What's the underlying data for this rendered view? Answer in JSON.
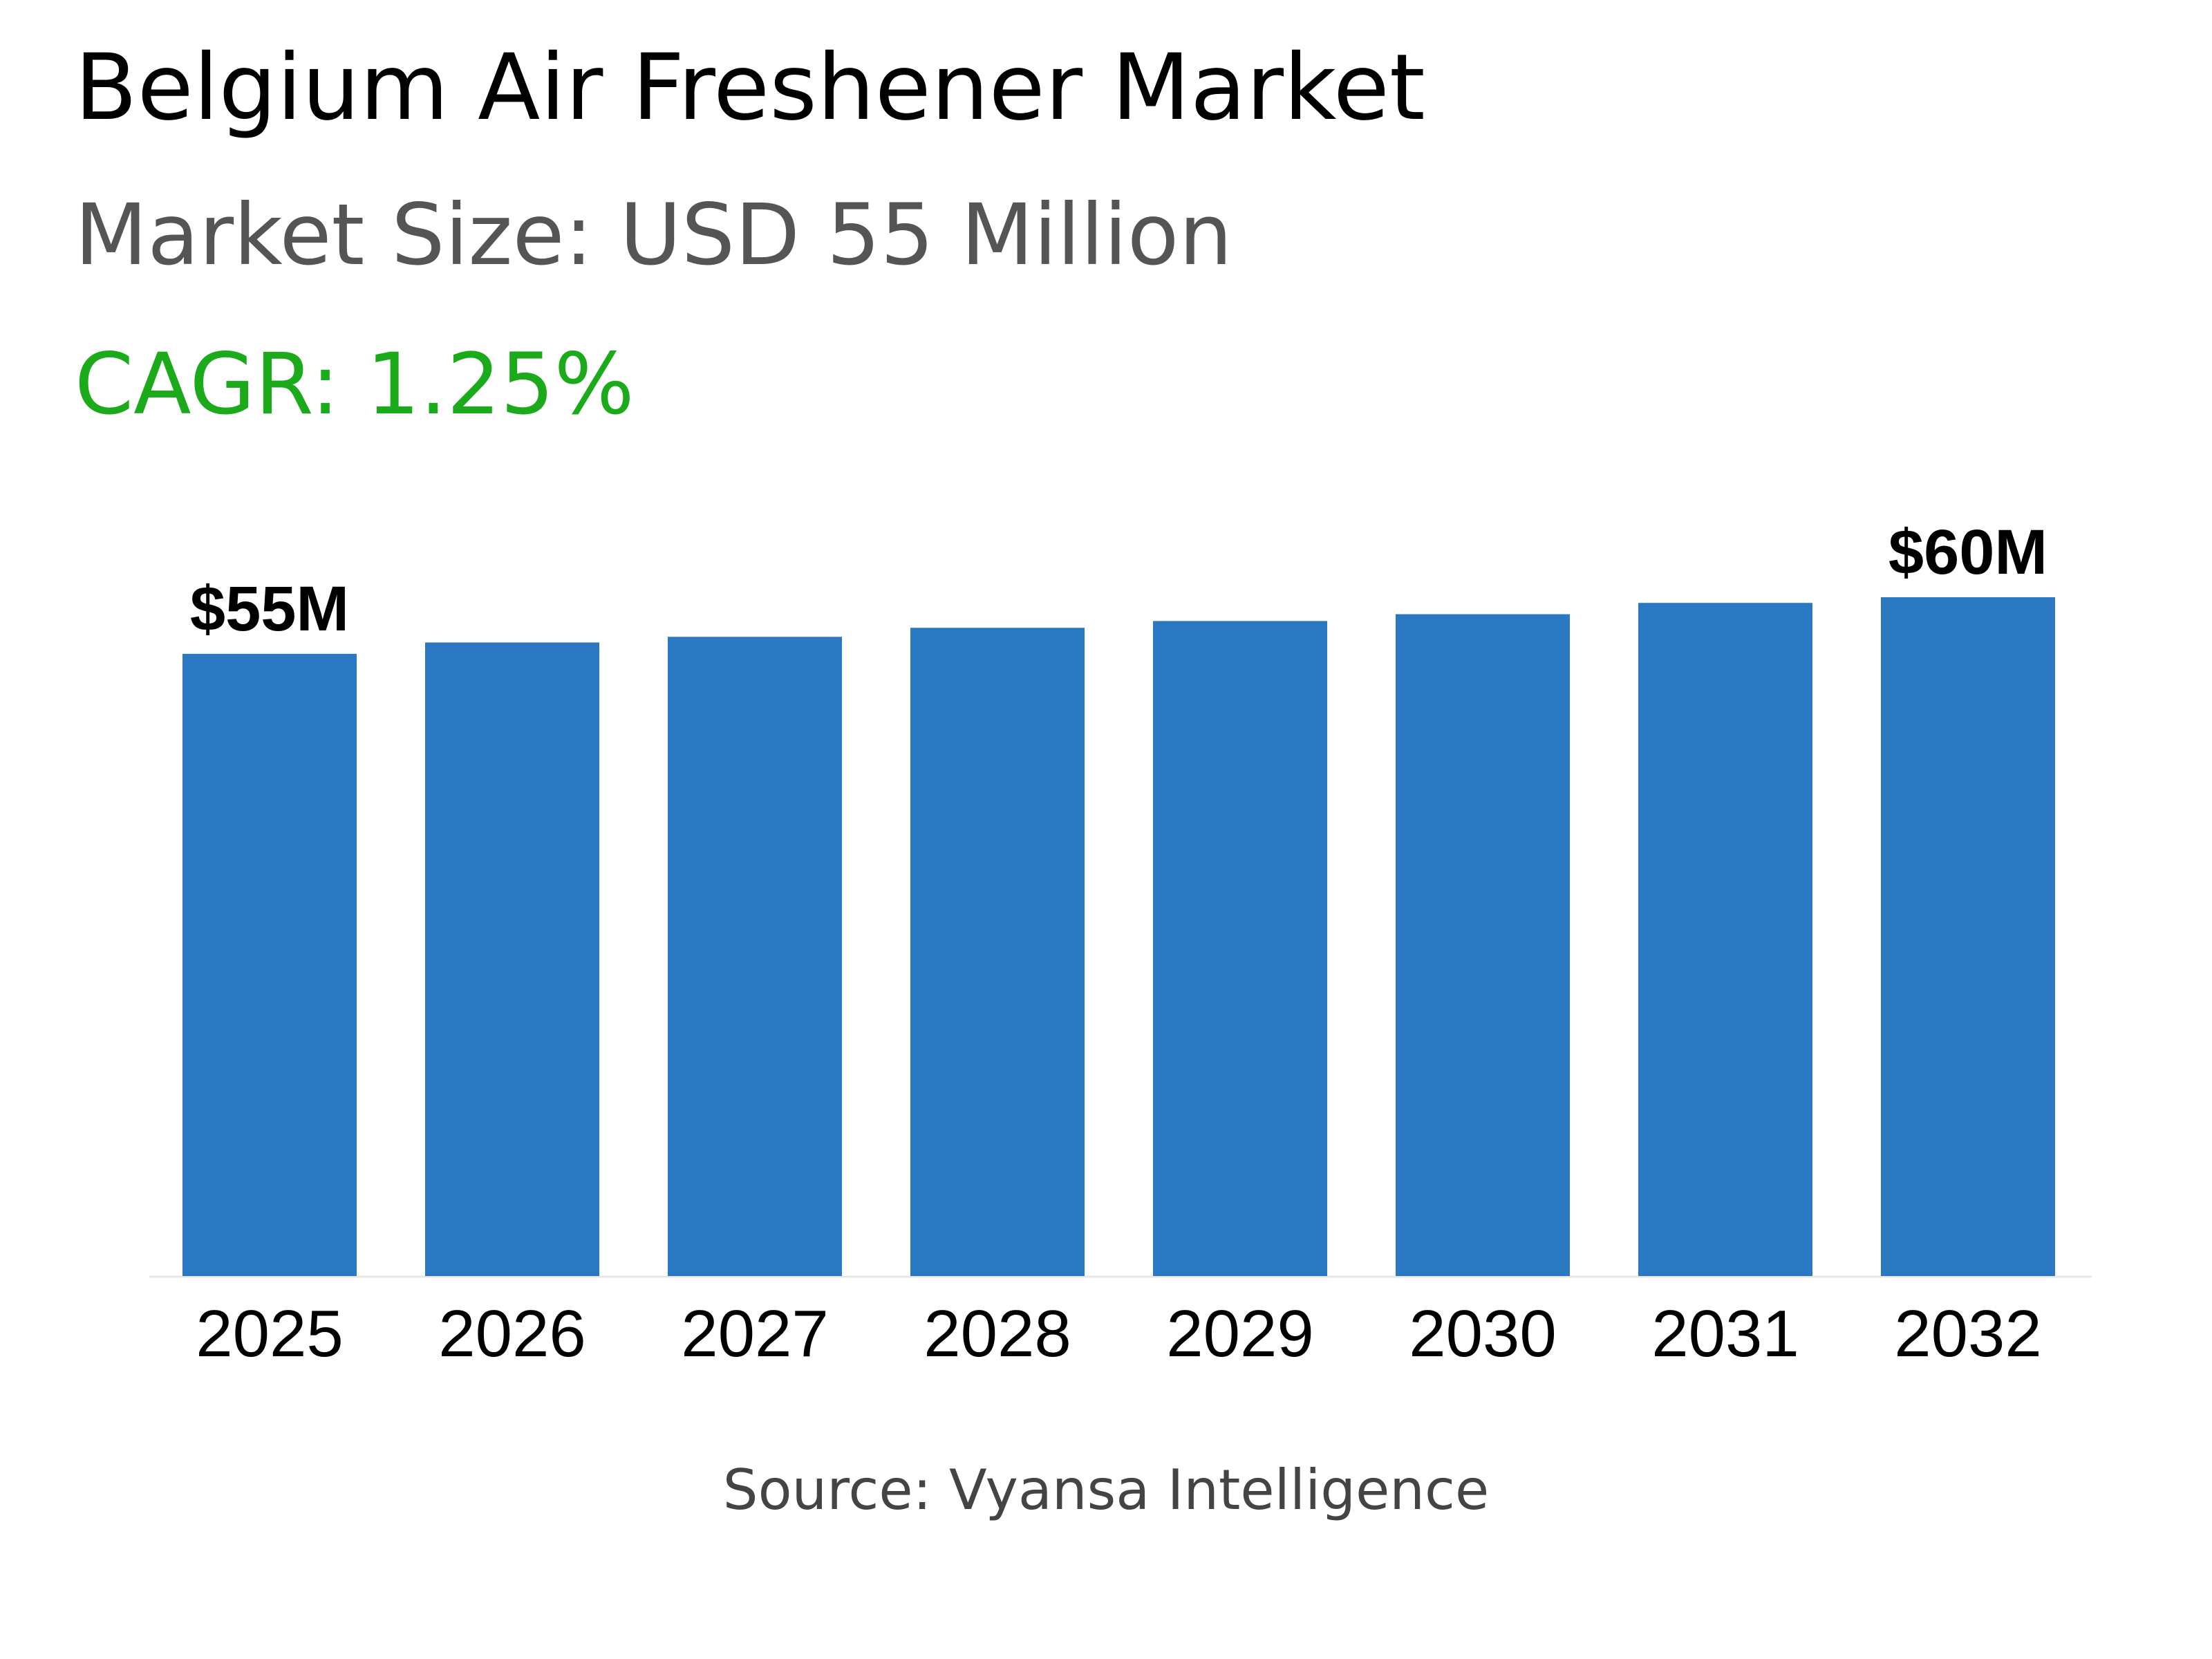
{
  "header": {
    "title": "Belgium Air Freshener Market",
    "market_size": "Market Size: USD 55 Million",
    "cagr": "CAGR: 1.25%"
  },
  "footer": {
    "source": "Source: Vyansa Intelligence"
  },
  "colors": {
    "bar": "#2b78c2",
    "cagr": "#1aaa1a",
    "axis_line": "#e6e6e6"
  },
  "chart_data": {
    "type": "bar",
    "categories": [
      "2025",
      "2026",
      "2027",
      "2028",
      "2029",
      "2030",
      "2031",
      "2032"
    ],
    "values": [
      55,
      56,
      56.5,
      57.3,
      57.9,
      58.5,
      59.5,
      60
    ],
    "data_labels": [
      "$55M",
      "",
      "",
      "",
      "",
      "",
      "",
      "$60M"
    ],
    "ylim": [
      0,
      60
    ],
    "grid": false,
    "legend": "none"
  }
}
